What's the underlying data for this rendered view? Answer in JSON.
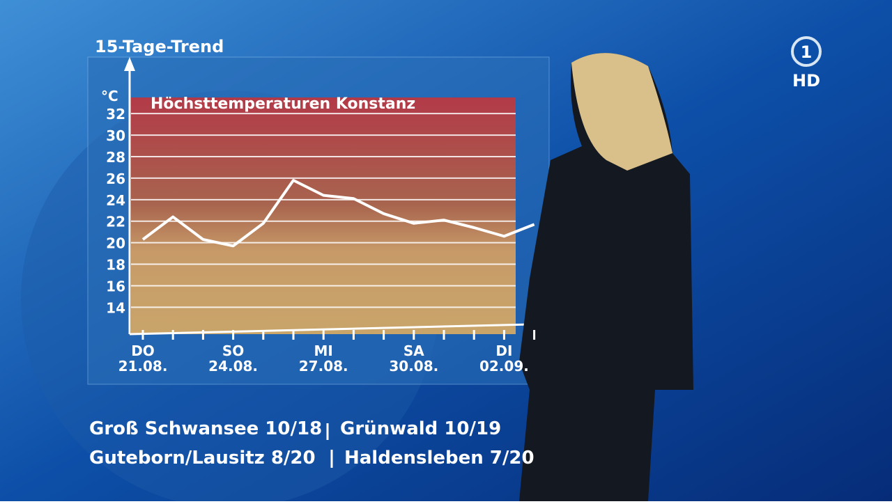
{
  "header": "15-Tage-Trend",
  "logo": {
    "channel": "1",
    "quality": "HD"
  },
  "chart_data": {
    "type": "line",
    "title": "Höchsttemperaturen Konstanz",
    "y_unit": "°C",
    "categories": [
      "21.08.",
      null,
      null,
      "24.08.",
      null,
      null,
      "27.08.",
      null,
      null,
      "30.08.",
      null,
      null,
      "02.09.",
      null
    ],
    "weekdays": [
      "DO",
      null,
      null,
      "SO",
      null,
      null,
      "MI",
      null,
      null,
      "SA",
      null,
      null,
      "DI",
      null
    ],
    "series": [
      {
        "color": "#ffffff",
        "values": [
          20.3,
          22.4,
          20.3,
          19.7,
          21.8,
          25.8,
          24.4,
          24.1,
          22.7,
          21.8,
          22.1,
          21.4,
          20.6,
          21.7
        ]
      }
    ],
    "ylim": [
      11.5,
      33.5
    ],
    "yticks": [
      14,
      16,
      18,
      20,
      22,
      24,
      26,
      28,
      30,
      32
    ],
    "grid": true
  },
  "ticker": [
    [
      "Groß Schwansee 10/18",
      "Grünwald 10/19"
    ],
    [
      "Guteborn/Lausitz 8/20",
      "Haldensleben 7/20"
    ]
  ]
}
